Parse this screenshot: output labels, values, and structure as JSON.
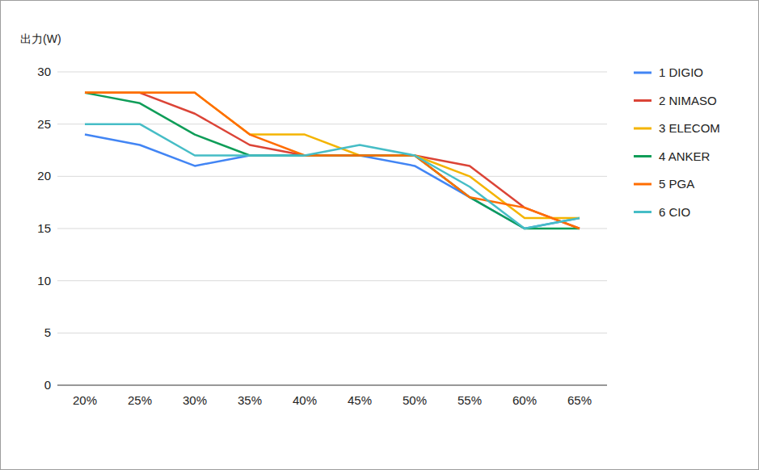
{
  "chart_data": {
    "type": "line",
    "y_label": "出力(W)",
    "categories": [
      "20%",
      "25%",
      "30%",
      "35%",
      "40%",
      "45%",
      "50%",
      "55%",
      "60%",
      "65%"
    ],
    "series": [
      {
        "name": "1 DIGIO",
        "color": "#4285f4",
        "values": [
          24,
          23,
          21,
          22,
          22,
          22,
          21,
          18,
          15,
          16
        ]
      },
      {
        "name": "2 NIMASO",
        "color": "#db4437",
        "values": [
          28,
          28,
          26,
          23,
          22,
          22,
          22,
          21,
          17,
          15
        ]
      },
      {
        "name": "3 ELECOM",
        "color": "#f4b400",
        "values": [
          28,
          28,
          28,
          24,
          24,
          22,
          22,
          20,
          16,
          16
        ]
      },
      {
        "name": "4 ANKER",
        "color": "#0f9d58",
        "values": [
          28,
          27,
          24,
          22,
          22,
          22,
          22,
          18,
          15,
          15
        ]
      },
      {
        "name": "5 PGA",
        "color": "#ff6d01",
        "values": [
          28,
          28,
          28,
          24,
          22,
          22,
          22,
          18,
          17,
          15
        ]
      },
      {
        "name": "6 CIO",
        "color": "#46bdc6",
        "values": [
          25,
          25,
          22,
          22,
          22,
          23,
          22,
          19,
          15,
          16
        ]
      }
    ],
    "ylim": [
      0,
      30
    ],
    "yticks": [
      0,
      5,
      10,
      15,
      20,
      25,
      30
    ],
    "grid": true,
    "legend": "right"
  }
}
